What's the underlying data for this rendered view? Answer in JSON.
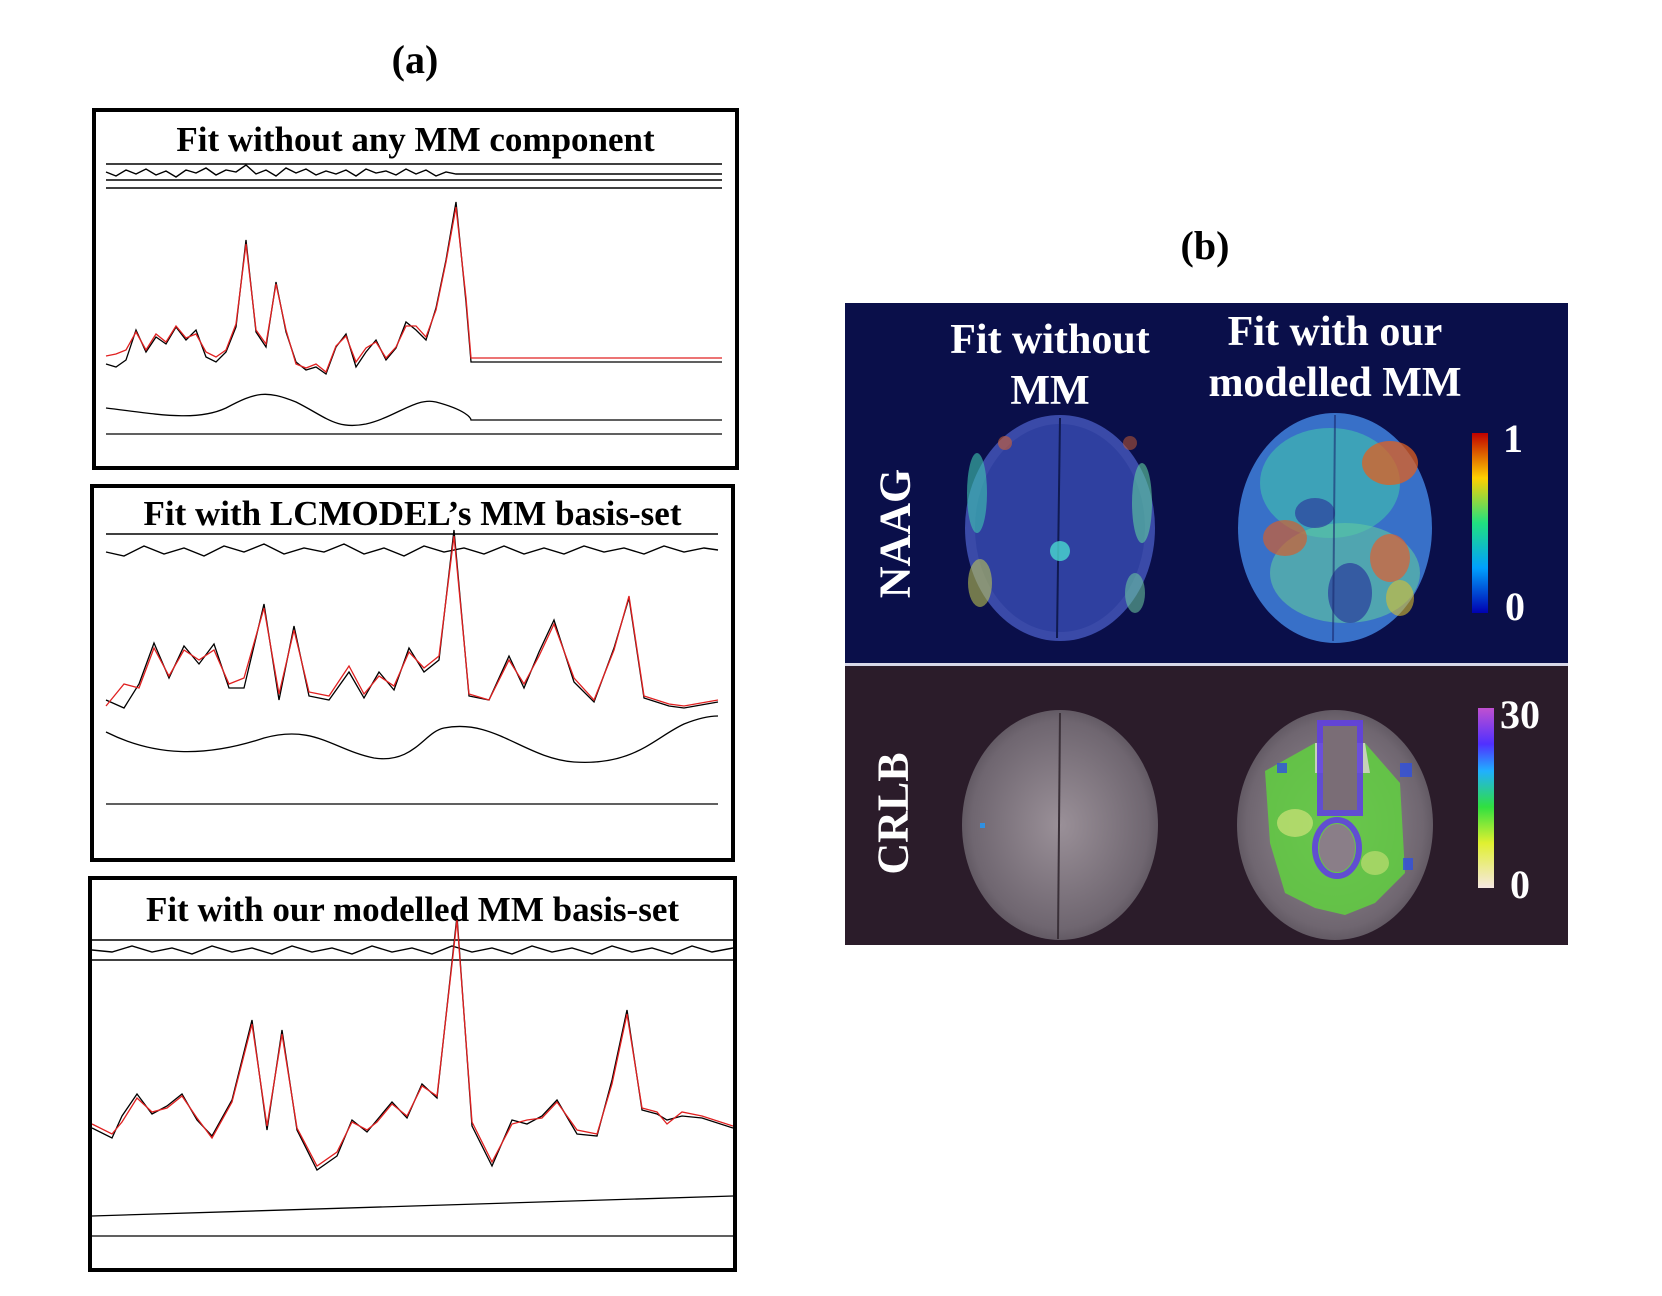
{
  "panel_a": {
    "label": "(a)",
    "fits": [
      {
        "title": "Fit without any MM component"
      },
      {
        "title": "Fit with LCMODEL’s MM basis-set"
      },
      {
        "title": "Fit with our modelled MM basis-set"
      }
    ],
    "colors": {
      "data": "#000000",
      "fit": "#e02020"
    }
  },
  "panel_b": {
    "label": "(b)",
    "columns": [
      "Fit without\nMM",
      "Fit with our\nmodelled MM"
    ],
    "rows": [
      {
        "label": "NAAG",
        "scale_max": "1",
        "scale_min": "0"
      },
      {
        "label": "CRLB",
        "scale_max": "30",
        "scale_min": "0"
      }
    ],
    "colors": {
      "naag_bg": "#0a0f4a",
      "crlb_bg": "#2b1c2a"
    }
  }
}
